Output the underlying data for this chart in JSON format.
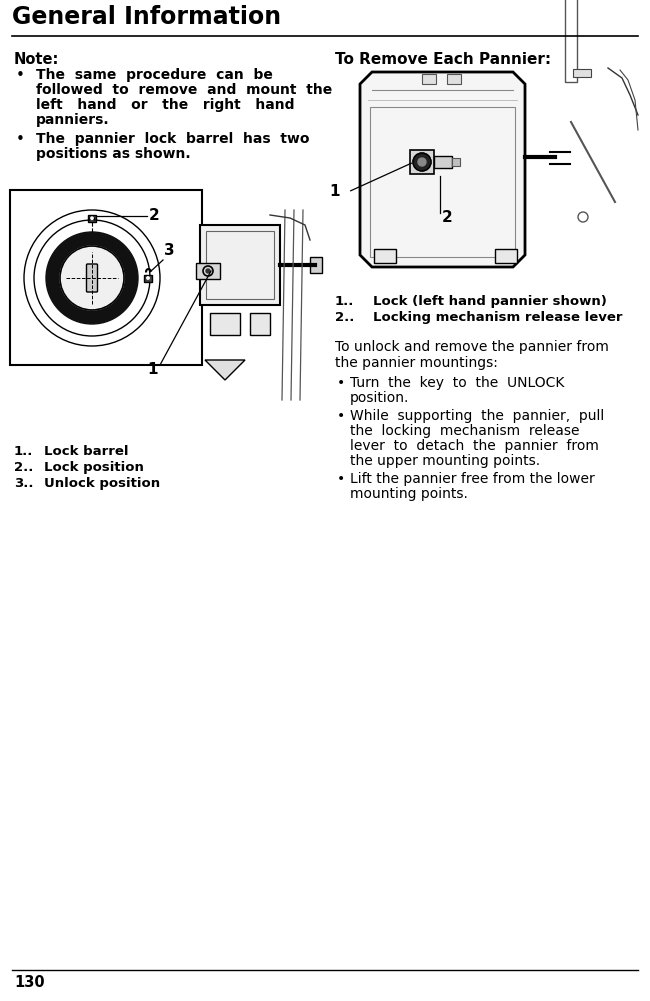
{
  "title": "General Information",
  "page_number": "130",
  "bg_color": "#ffffff",
  "text_color": "#000000",
  "note_label": "Note:",
  "bullet1_lines": [
    "The  same  procedure  can  be",
    "followed  to  remove  and  mount  the",
    "left   hand   or   the   right   hand",
    "panniers."
  ],
  "bullet2_lines": [
    "The  pannier  lock  barrel  has  two",
    "positions as shown."
  ],
  "left_captions": [
    "1. Lock barrel",
    "2. Lock position",
    "3. Unlock position"
  ],
  "right_title": "To Remove Each Pannier:",
  "right_captions": [
    "1.  Lock (left hand pannier shown)",
    "2.  Locking mechanism release lever"
  ],
  "intro_line1": "To unlock and remove the pannier from",
  "intro_line2": "the pannier mountings:",
  "rbullet1_lines": [
    "Turn  the  key  to  the  UNLOCK",
    "position."
  ],
  "rbullet2_lines": [
    "While  supporting  the  pannier,  pull",
    "the  locking  mechanism  release",
    "lever  to  detach  the  pannier  from",
    "the upper mounting points."
  ],
  "rbullet3_lines": [
    "Lift the pannier free from the lower",
    "mounting points."
  ]
}
